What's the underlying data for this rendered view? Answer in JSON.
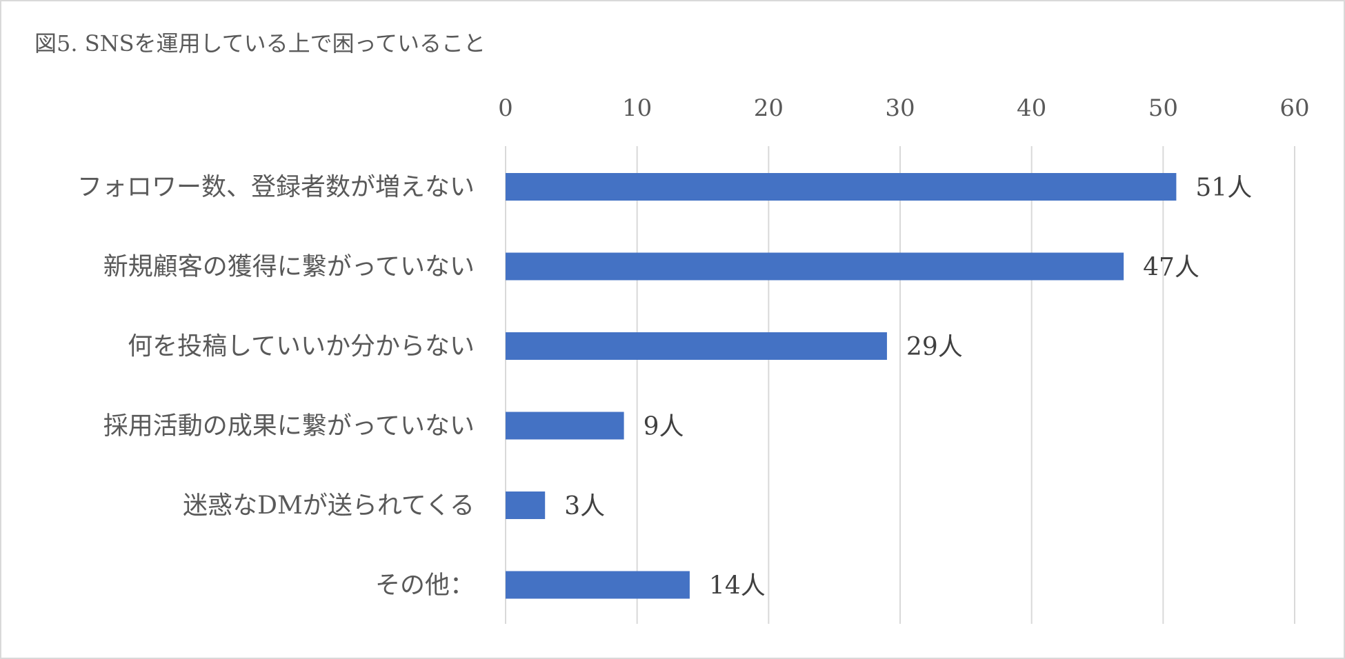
{
  "chart_data": {
    "type": "bar",
    "orientation": "horizontal",
    "title": "図5. SNSを運用している上で困っていること",
    "categories": [
      "フォロワー数、登録者数が増えない",
      "新規顧客の獲得に繋がっていない",
      "何を投稿していいか分からない",
      "採用活動の成果に繋がっていない",
      "迷惑なDMが送られてくる",
      "その他："
    ],
    "values": [
      51,
      47,
      29,
      9,
      3,
      14
    ],
    "data_labels": [
      "51人",
      "47人",
      "29人",
      "9人",
      "3人",
      "14人"
    ],
    "xlim": [
      0,
      60
    ],
    "xticks": [
      0,
      10,
      20,
      30,
      40,
      50,
      60
    ],
    "x_axis_position": "top",
    "grid": true,
    "legend": "none",
    "bar_color": "#4472c4",
    "grid_color": "#d9d9d9",
    "text_color": "#595959"
  }
}
